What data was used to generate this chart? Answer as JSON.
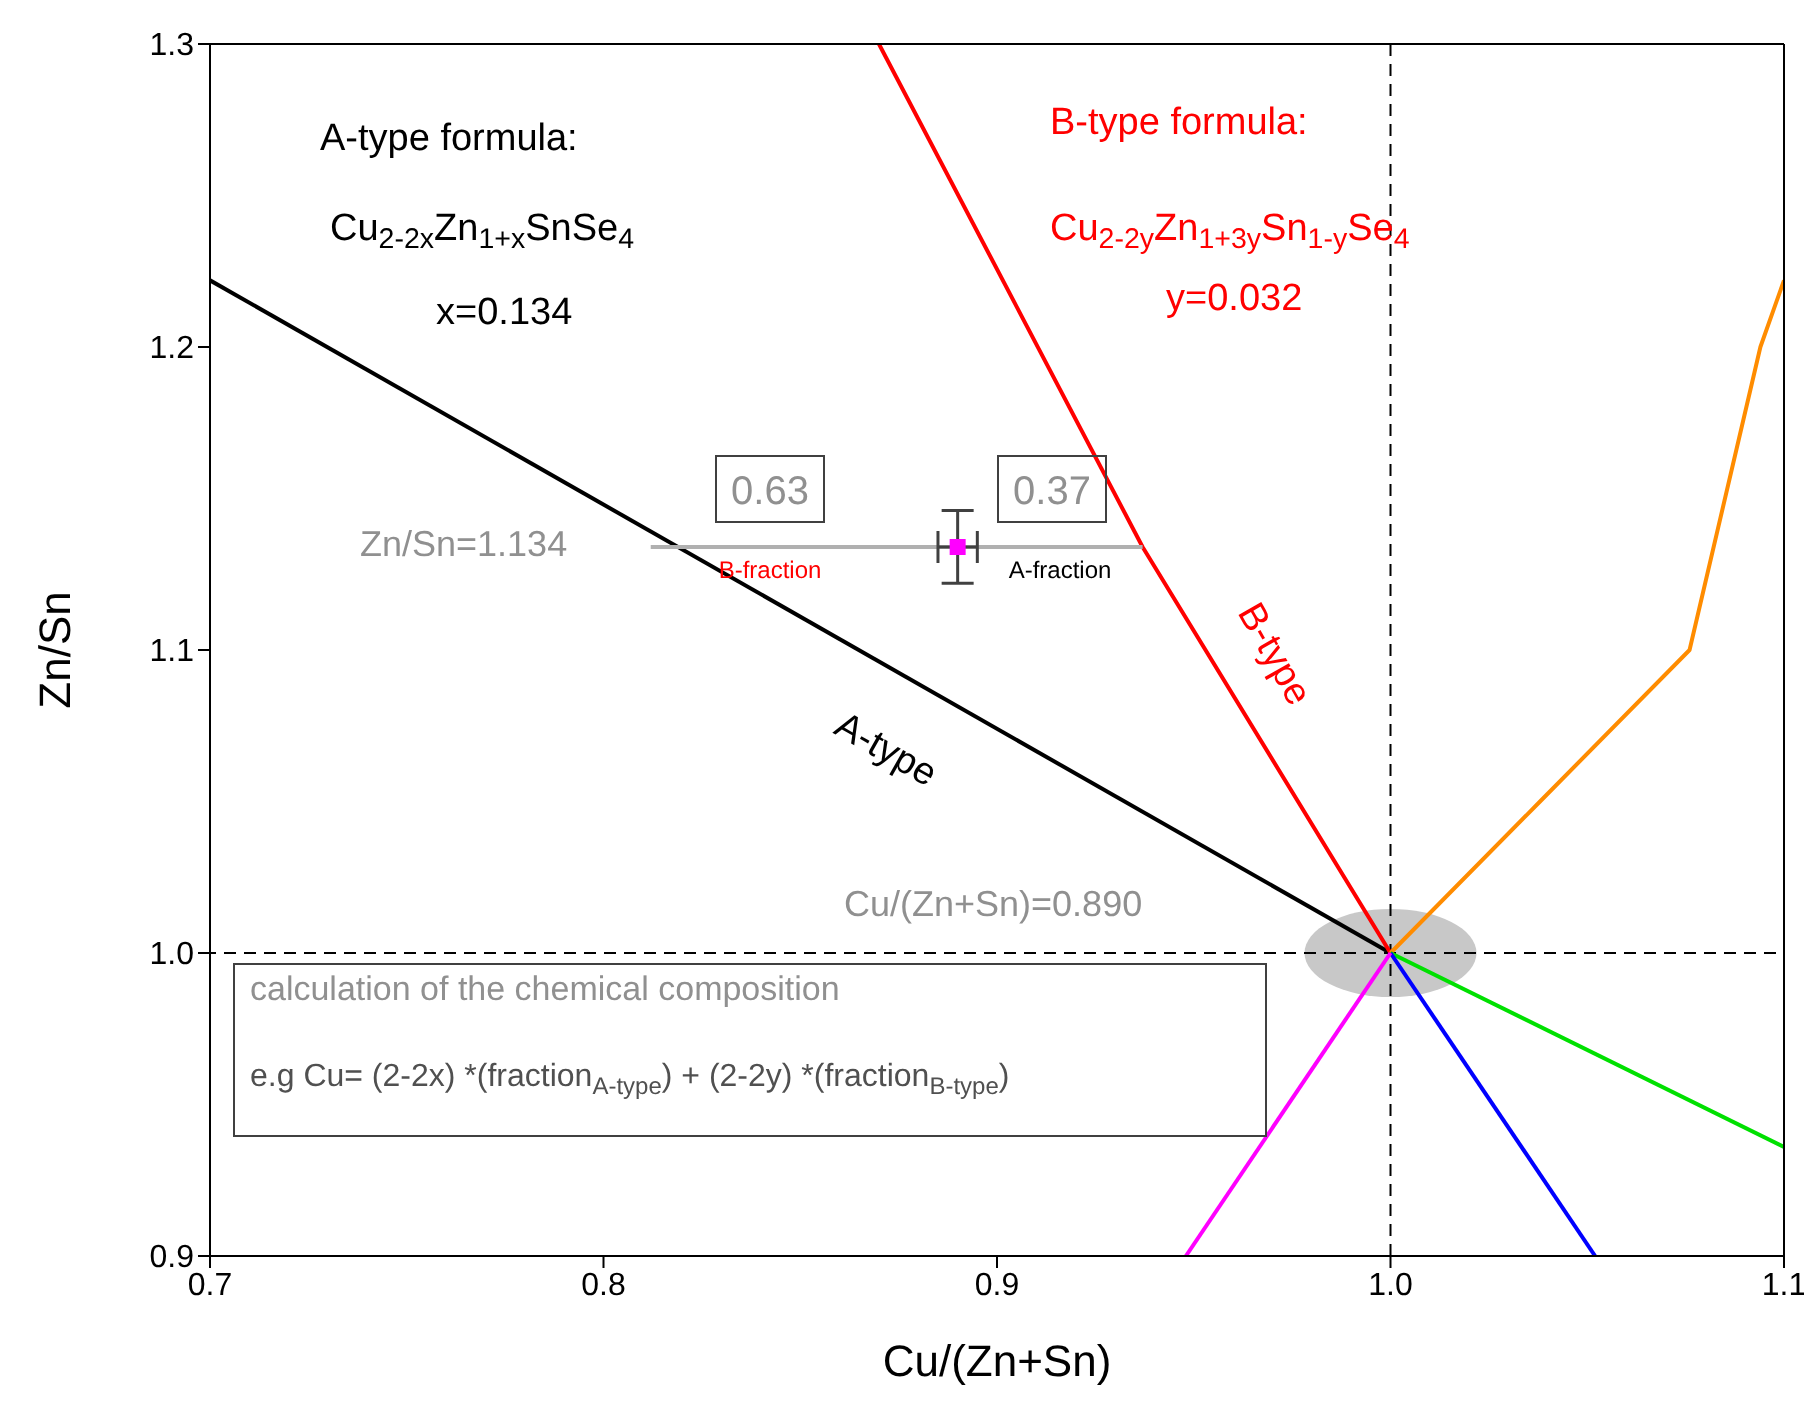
{
  "chart_data": {
    "type": "line",
    "xlabel": "Cu/(Zn+Sn)",
    "ylabel": "Zn/Sn",
    "xlim": [
      0.7,
      1.1
    ],
    "xticks": [
      0.7,
      0.8,
      0.9,
      {
        "value": 1,
        "label": "1.0"
      },
      1.1
    ],
    "ylim": [
      0.9,
      1.3
    ],
    "yticks": [
      0.9,
      {
        "value": 1,
        "label": "1.0"
      },
      1.1,
      1.2,
      1.3
    ],
    "marker": "none",
    "series": [
      {
        "name": "A-type",
        "color": "#000000",
        "x": [
          0.7,
          1.0
        ],
        "values": [
          1.222,
          1.0
        ]
      },
      {
        "name": "B-type",
        "color": "#ff0000",
        "x": [
          0.87,
          0.937,
          1.0
        ],
        "values": [
          1.3,
          1.134,
          1.0
        ]
      },
      {
        "color": "#ff8c00",
        "x": [
          1.0,
          1.038,
          1.076,
          1.094,
          1.1
        ],
        "values": [
          1.0,
          1.05,
          1.1,
          1.2,
          1.222
        ]
      },
      {
        "color": "#00e000",
        "x": [
          1.0,
          1.1
        ],
        "values": [
          1.0,
          0.936
        ]
      },
      {
        "color": "#0000ff",
        "x": [
          1.0,
          1.052
        ],
        "values": [
          1.0,
          0.9
        ]
      },
      {
        "color": "#ff00ff",
        "x": [
          1.0,
          0.948
        ],
        "values": [
          1.0,
          0.9
        ]
      },
      {
        "color": "#b0b0b0",
        "x": [
          0.812,
          0.937
        ],
        "values": [
          1.134,
          1.134
        ]
      },
      {
        "type": "scatter",
        "marker": "square",
        "color": "#ff00ff",
        "x": [
          0.89
        ],
        "values": [
          1.134
        ],
        "errors": [
          0.012
        ],
        "xerrors": [
          0.005
        ]
      }
    ],
    "ref_lines": [
      {
        "axis": "x",
        "value": 1.0,
        "color": "#000000",
        "line_style": "dashed"
      },
      {
        "axis": "y",
        "value": 1.0,
        "color": "#000000",
        "line_style": "dashed"
      }
    ],
    "annotations": [
      "A-type formula:",
      "Cu$_{2-2x}$Zn$_{1+x}$SnSe$_{4}$",
      "x=0.134",
      "B-type formula:",
      "Cu$_{2-2y}$Zn$_{1+3y}$Sn$_{1-y}$Se$_{4}$",
      "y=0.032",
      "Zn/Sn=1.134",
      "0.63",
      "B-fraction",
      "0.37",
      "A-fraction",
      "Cu/(Zn+Sn)=0.890",
      "calculation of the chemical composition",
      "e.g Cu= (2-2x) *(fraction$_{A-type}$) + (2-2y) *(fraction$_{B-type}$)"
    ]
  }
}
